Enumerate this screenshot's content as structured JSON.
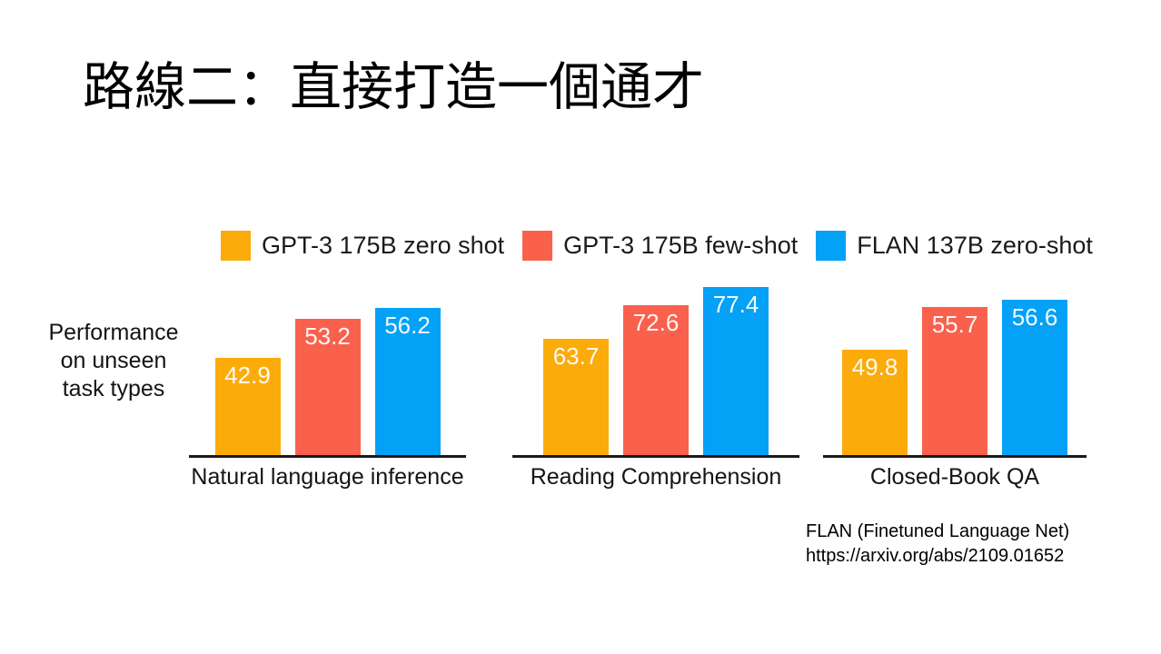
{
  "slide": {
    "title": "路線二：直接打造一個通才",
    "attribution": {
      "line1": "FLAN (Finetuned Language Net)",
      "line2": "https://arxiv.org/abs/2109.01652"
    }
  },
  "chart_data": {
    "type": "bar",
    "title": "",
    "ylabel_lines": [
      "Performance",
      "on unseen",
      "task types"
    ],
    "categories": [
      "Natural language inference",
      "Reading Comprehension",
      "Closed-Book QA"
    ],
    "series": [
      {
        "name": "GPT-3 175B zero shot",
        "color": "#FBAB0A",
        "values": [
          42.9,
          63.7,
          49.8
        ]
      },
      {
        "name": "GPT-3 175B few-shot",
        "color": "#F9614D",
        "values": [
          53.2,
          72.6,
          55.7
        ]
      },
      {
        "name": "FLAN 137B zero-shot",
        "color": "#05A1F6",
        "values": [
          56.2,
          77.4,
          56.6
        ]
      }
    ],
    "group_ylims": [
      [
        17,
        63
      ],
      [
        33.5,
        78.5
      ],
      [
        35.5,
        59
      ]
    ],
    "legend_position": "top",
    "grid": false,
    "value_labels_shown": true,
    "value_label_color": "#FFFFFF",
    "axis_color": "#1A1A1A"
  }
}
